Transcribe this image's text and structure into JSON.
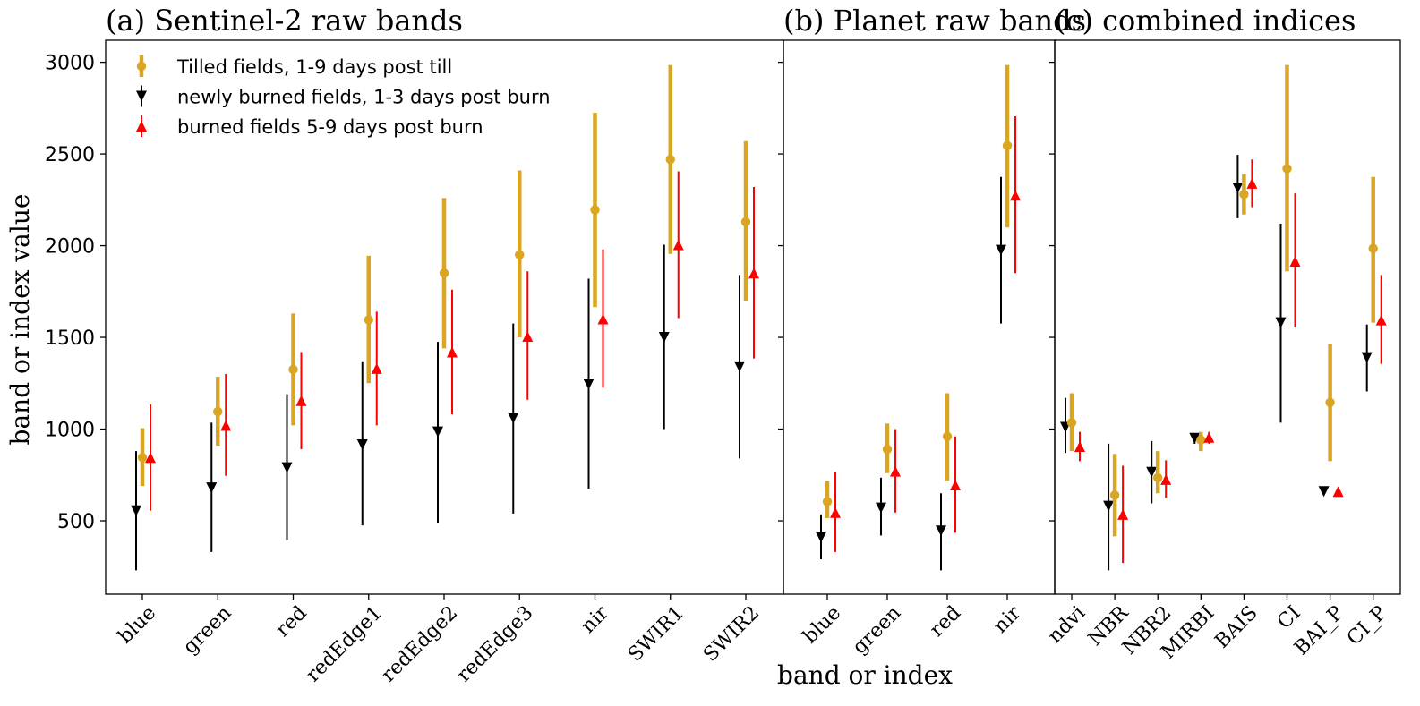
{
  "chart_data": {
    "type": "scatter",
    "subtype": "errorbar",
    "ylabel": "band or index value",
    "xlabel": "band or index",
    "ylim": [
      100,
      3120
    ],
    "yticks": [
      500,
      1000,
      1500,
      2000,
      2500,
      3000
    ],
    "legend": {
      "placement": "top-left",
      "entries": [
        {
          "series": "tilled",
          "label": "Tilled fields, 1-9 days post till",
          "color": "#DAA520",
          "marker": "circle"
        },
        {
          "series": "newly",
          "label": "newly burned fields, 1-3 days post burn",
          "color": "#000000",
          "marker": "triangle-down"
        },
        {
          "series": "burned",
          "label": "burned fields 5-9 days post burn",
          "color": "#FF0000",
          "marker": "triangle-up"
        }
      ]
    },
    "panels": [
      {
        "title": "(a) Sentinel-2 raw bands",
        "categories": [
          "blue",
          "green",
          "red",
          "redEdge1",
          "redEdge2",
          "redEdge3",
          "nir",
          "SWIR1",
          "SWIR2"
        ],
        "series": {
          "tilled": [
            [
              845,
              690,
              1005
            ],
            [
              1095,
              910,
              1285
            ],
            [
              1325,
              1020,
              1630
            ],
            [
              1595,
              1250,
              1945
            ],
            [
              1850,
              1440,
              2260
            ],
            [
              1950,
              1500,
              2410
            ],
            [
              2195,
              1665,
              2725
            ],
            [
              2470,
              1955,
              2985
            ],
            [
              2130,
              1700,
              2570
            ]
          ],
          "newly": [
            [
              555,
              230,
              880
            ],
            [
              680,
              330,
              1035
            ],
            [
              790,
              395,
              1190
            ],
            [
              915,
              475,
              1370
            ],
            [
              985,
              490,
              1475
            ],
            [
              1060,
              540,
              1575
            ],
            [
              1245,
              675,
              1820
            ],
            [
              1500,
              1000,
              2005
            ],
            [
              1340,
              840,
              1840
            ]
          ],
          "burned": [
            [
              845,
              555,
              1135
            ],
            [
              1020,
              745,
              1300
            ],
            [
              1155,
              890,
              1420
            ],
            [
              1330,
              1020,
              1640
            ],
            [
              1420,
              1080,
              1760
            ],
            [
              1505,
              1160,
              1860
            ],
            [
              1600,
              1225,
              1980
            ],
            [
              2005,
              1605,
              2405
            ],
            [
              1850,
              1385,
              2320
            ]
          ]
        }
      },
      {
        "title": "(b) Planet raw bands",
        "categories": [
          "blue",
          "green",
          "red",
          "nir"
        ],
        "series": {
          "tilled": [
            [
              605,
              515,
              715
            ],
            [
              890,
              760,
              1030
            ],
            [
              960,
              720,
              1195
            ],
            [
              2545,
              2100,
              2985
            ]
          ],
          "newly": [
            [
              410,
              290,
              535
            ],
            [
              570,
              420,
              735
            ],
            [
              445,
              230,
              650
            ],
            [
              1975,
              1575,
              2375
            ]
          ],
          "burned": [
            [
              545,
              330,
              765
            ],
            [
              770,
              545,
              1000
            ],
            [
              695,
              435,
              960
            ],
            [
              2275,
              1850,
              2705
            ]
          ]
        }
      },
      {
        "title": "(c) combined indices",
        "categories": [
          "ndvi",
          "NBR",
          "NBR2",
          "MIRBI",
          "BAIS",
          "CI",
          "BAI_P",
          "CI_P"
        ],
        "series": {
          "tilled": [
            [
              1035,
              880,
              1195
            ],
            [
              640,
              415,
              865
            ],
            [
              735,
              650,
              880
            ],
            [
              940,
              880,
              985
            ],
            [
              2280,
              2170,
              2390
            ],
            [
              2420,
              1860,
              2985
            ],
            [
              1145,
              825,
              1465
            ],
            [
              1985,
              1580,
              2375
            ]
          ],
          "newly": [
            [
              1010,
              870,
              1170
            ],
            [
              580,
              230,
              920
            ],
            [
              765,
              595,
              935
            ],
            [
              950,
              920,
              975
            ],
            [
              2315,
              2150,
              2495
            ],
            [
              1580,
              1035,
              2120
            ],
            [
              660,
              660,
              660
            ],
            [
              1390,
              1205,
              1570
            ]
          ],
          "burned": [
            [
              905,
              825,
              985
            ],
            [
              535,
              270,
              800
            ],
            [
              725,
              625,
              830
            ],
            [
              955,
              920,
              985
            ],
            [
              2340,
              2210,
              2470
            ],
            [
              1915,
              1555,
              2285
            ],
            [
              660,
              660,
              660
            ],
            [
              1595,
              1355,
              1840
            ]
          ]
        }
      }
    ]
  }
}
